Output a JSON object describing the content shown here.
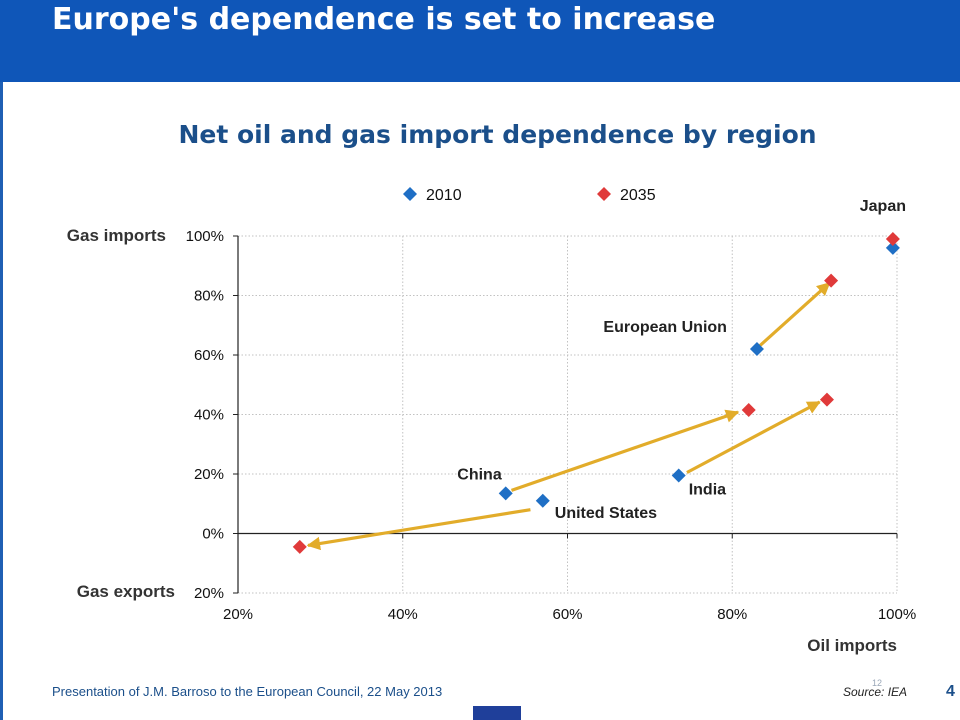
{
  "slide": {
    "title": "Europe's dependence is set to increase",
    "footer_text": "Presentation of J.M. Barroso to the European Council, 22 May 2013",
    "source": "Source: IEA",
    "slide_number_small": "12",
    "page_number": "4"
  },
  "colors": {
    "header": "#0f56b8",
    "title": "#1b4f8a",
    "series_2010": "#1f6fc5",
    "series_2035": "#e03a3a",
    "arrow": "#e2ac2a"
  },
  "chart_data": {
    "type": "scatter",
    "title": "Net oil and gas import dependence by region",
    "xlabel": "Oil imports",
    "ylabel_top": "Gas imports",
    "ylabel_bottom": "Gas exports",
    "xlim": [
      20,
      100
    ],
    "ylim": [
      -20,
      100
    ],
    "x_ticks": [
      20,
      40,
      60,
      80,
      100
    ],
    "x_tick_labels": [
      "20%",
      "40%",
      "60%",
      "80%",
      "100%"
    ],
    "y_ticks": [
      -20,
      0,
      20,
      40,
      60,
      80,
      100
    ],
    "y_tick_labels": [
      "20%",
      "0%",
      "20%",
      "40%",
      "60%",
      "80%",
      "100%"
    ],
    "grid": true,
    "legend_position": "top",
    "series": [
      {
        "name": "2010",
        "points": [
          {
            "region": "Japan",
            "x": 99.5,
            "y": 96
          },
          {
            "region": "European Union",
            "x": 83,
            "y": 62
          },
          {
            "region": "China",
            "x": 52.5,
            "y": 13.5
          },
          {
            "region": "United States",
            "x": 57,
            "y": 11
          },
          {
            "region": "India",
            "x": 73.5,
            "y": 19.5
          }
        ]
      },
      {
        "name": "2035",
        "points": [
          {
            "region": "Japan",
            "x": 99.5,
            "y": 99
          },
          {
            "region": "European Union",
            "x": 92,
            "y": 85
          },
          {
            "region": "China",
            "x": 82,
            "y": 41.5
          },
          {
            "region": "United States",
            "x": 27.5,
            "y": -4.5
          },
          {
            "region": "India",
            "x": 91.5,
            "y": 45
          }
        ]
      }
    ],
    "region_labels": [
      {
        "text": "Japan",
        "x": 99.5,
        "y": 99
      },
      {
        "text": "European Union",
        "x": 83,
        "y": 62
      },
      {
        "text": "China",
        "x": 52.5,
        "y": 13.5
      },
      {
        "text": "United States",
        "x": 57,
        "y": 11
      },
      {
        "text": "India",
        "x": 73.5,
        "y": 19.5
      }
    ],
    "arrows": [
      {
        "region": "European Union",
        "from": [
          83.3,
          63
        ],
        "to": [
          91.8,
          84.2
        ]
      },
      {
        "region": "China",
        "from": [
          53.2,
          14.5
        ],
        "to": [
          80.7,
          40.8
        ]
      },
      {
        "region": "United States",
        "from": [
          55.5,
          8
        ],
        "to": [
          28.5,
          -4
        ]
      },
      {
        "region": "India",
        "from": [
          74.5,
          20.5
        ],
        "to": [
          90.6,
          44.2
        ]
      }
    ]
  }
}
